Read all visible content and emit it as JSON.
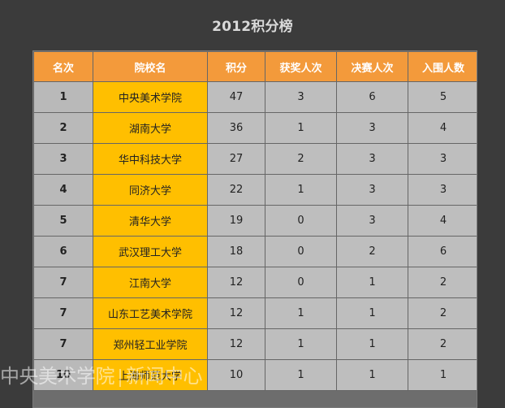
{
  "page": {
    "title": "2012积分榜"
  },
  "table": {
    "headers": [
      "名次",
      "院校名",
      "积分",
      "获奖人次",
      "决赛人次",
      "入围人数"
    ],
    "rows": [
      {
        "rank": "1",
        "school": "中央美术学院",
        "score": "47",
        "awards": "3",
        "finals": "6",
        "shortlist": "5"
      },
      {
        "rank": "2",
        "school": "湖南大学",
        "score": "36",
        "awards": "1",
        "finals": "3",
        "shortlist": "4"
      },
      {
        "rank": "3",
        "school": "华中科技大学",
        "score": "27",
        "awards": "2",
        "finals": "3",
        "shortlist": "3"
      },
      {
        "rank": "4",
        "school": "同济大学",
        "score": "22",
        "awards": "1",
        "finals": "3",
        "shortlist": "3"
      },
      {
        "rank": "5",
        "school": "清华大学",
        "score": "19",
        "awards": "0",
        "finals": "3",
        "shortlist": "4"
      },
      {
        "rank": "6",
        "school": "武汉理工大学",
        "score": "18",
        "awards": "0",
        "finals": "2",
        "shortlist": "6"
      },
      {
        "rank": "7",
        "school": "江南大学",
        "score": "12",
        "awards": "0",
        "finals": "1",
        "shortlist": "2"
      },
      {
        "rank": "7",
        "school": "山东工艺美术学院",
        "score": "12",
        "awards": "1",
        "finals": "1",
        "shortlist": "2"
      },
      {
        "rank": "7",
        "school": "郑州轻工业学院",
        "score": "12",
        "awards": "1",
        "finals": "1",
        "shortlist": "2"
      },
      {
        "rank": "10",
        "school": "上海师范大学",
        "score": "10",
        "awards": "1",
        "finals": "1",
        "shortlist": "1"
      }
    ]
  },
  "watermark": {
    "left": "中央美术学院",
    "right": "新闻中心"
  }
}
